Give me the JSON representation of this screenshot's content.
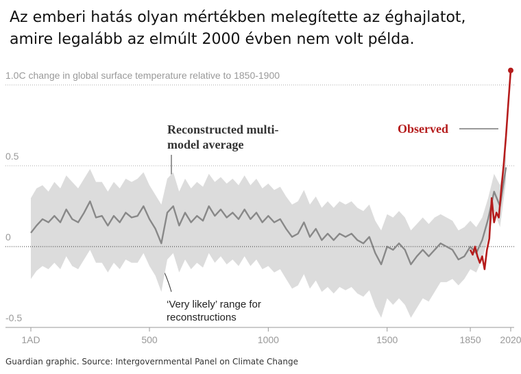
{
  "title": "Az emberi hatás olyan mértékben melegítette az éghajlatot, amire legalább az elmúlt 2000 évben nem volt példa.",
  "source": "Guardian graphic. Source: Intergovernmental Panel on Climate Change",
  "chart_data": {
    "type": "line",
    "xlim": [
      1,
      2020
    ],
    "ylim": [
      -0.5,
      1.1
    ],
    "xticks": [
      {
        "value": 1,
        "label": "1AD"
      },
      500,
      1000,
      1500,
      1850,
      2020
    ],
    "yticks": [
      -0.5,
      0,
      0.5,
      {
        "value": 1,
        "label": "1.0C change in global surface temperature relative to 1850-1900"
      }
    ],
    "grid": true,
    "range": {
      "name": "‘Very likely’ range for reconstructions",
      "color": "#dcdcdc",
      "x": [
        1,
        25,
        50,
        75,
        100,
        125,
        150,
        175,
        200,
        225,
        250,
        275,
        300,
        325,
        350,
        375,
        400,
        425,
        450,
        475,
        500,
        525,
        550,
        575,
        600,
        625,
        650,
        675,
        700,
        725,
        750,
        775,
        800,
        825,
        850,
        875,
        900,
        925,
        950,
        975,
        1000,
        1025,
        1050,
        1075,
        1100,
        1125,
        1150,
        1175,
        1200,
        1225,
        1250,
        1275,
        1300,
        1325,
        1350,
        1375,
        1400,
        1425,
        1450,
        1475,
        1500,
        1525,
        1550,
        1575,
        1600,
        1625,
        1650,
        1675,
        1700,
        1725,
        1750,
        1775,
        1800,
        1825,
        1850,
        1875,
        1900,
        1925,
        1950,
        1975,
        2000
      ],
      "upper": [
        0.3,
        0.36,
        0.38,
        0.34,
        0.4,
        0.36,
        0.44,
        0.4,
        0.36,
        0.42,
        0.48,
        0.4,
        0.4,
        0.34,
        0.4,
        0.36,
        0.42,
        0.4,
        0.42,
        0.46,
        0.38,
        0.32,
        0.26,
        0.42,
        0.46,
        0.34,
        0.42,
        0.36,
        0.4,
        0.37,
        0.45,
        0.4,
        0.43,
        0.39,
        0.42,
        0.38,
        0.44,
        0.38,
        0.42,
        0.36,
        0.39,
        0.35,
        0.37,
        0.31,
        0.26,
        0.28,
        0.35,
        0.26,
        0.31,
        0.24,
        0.28,
        0.24,
        0.28,
        0.26,
        0.28,
        0.24,
        0.22,
        0.26,
        0.16,
        0.1,
        0.2,
        0.18,
        0.22,
        0.18,
        0.1,
        0.14,
        0.18,
        0.14,
        0.18,
        0.2,
        0.18,
        0.16,
        0.1,
        0.12,
        0.16,
        0.12,
        0.18,
        0.3,
        0.45,
        0.38,
        0.58
      ],
      "lower": [
        -0.2,
        -0.15,
        -0.12,
        -0.14,
        -0.1,
        -0.14,
        -0.06,
        -0.12,
        -0.14,
        -0.08,
        -0.02,
        -0.1,
        -0.1,
        -0.16,
        -0.1,
        -0.14,
        -0.08,
        -0.1,
        -0.1,
        -0.04,
        -0.12,
        -0.18,
        -0.28,
        -0.08,
        -0.04,
        -0.16,
        -0.08,
        -0.14,
        -0.1,
        -0.13,
        -0.04,
        -0.1,
        -0.06,
        -0.11,
        -0.08,
        -0.12,
        -0.06,
        -0.12,
        -0.08,
        -0.14,
        -0.12,
        -0.16,
        -0.14,
        -0.2,
        -0.26,
        -0.24,
        -0.17,
        -0.26,
        -0.21,
        -0.28,
        -0.25,
        -0.29,
        -0.25,
        -0.27,
        -0.25,
        -0.29,
        -0.31,
        -0.27,
        -0.37,
        -0.44,
        -0.32,
        -0.36,
        -0.32,
        -0.36,
        -0.44,
        -0.38,
        -0.32,
        -0.34,
        -0.28,
        -0.22,
        -0.22,
        -0.2,
        -0.24,
        -0.2,
        -0.14,
        -0.16,
        -0.08,
        0.05,
        0.22,
        0.12,
        0.4
      ]
    },
    "series": [
      {
        "name": "Reconstructed multi-model average",
        "color": "#888888",
        "x": [
          1,
          25,
          50,
          75,
          100,
          125,
          150,
          175,
          200,
          225,
          250,
          275,
          300,
          325,
          350,
          375,
          400,
          425,
          450,
          475,
          500,
          525,
          550,
          575,
          600,
          625,
          650,
          675,
          700,
          725,
          750,
          775,
          800,
          825,
          850,
          875,
          900,
          925,
          950,
          975,
          1000,
          1025,
          1050,
          1075,
          1100,
          1125,
          1150,
          1175,
          1200,
          1225,
          1250,
          1275,
          1300,
          1325,
          1350,
          1375,
          1400,
          1425,
          1450,
          1475,
          1500,
          1525,
          1550,
          1575,
          1600,
          1625,
          1650,
          1675,
          1700,
          1725,
          1750,
          1775,
          1800,
          1825,
          1850,
          1875,
          1900,
          1925,
          1950,
          1975,
          2000
        ],
        "values": [
          0.085,
          0.13,
          0.17,
          0.15,
          0.19,
          0.15,
          0.23,
          0.17,
          0.15,
          0.21,
          0.28,
          0.18,
          0.19,
          0.13,
          0.19,
          0.15,
          0.21,
          0.18,
          0.19,
          0.25,
          0.17,
          0.11,
          0.02,
          0.21,
          0.25,
          0.13,
          0.21,
          0.15,
          0.19,
          0.16,
          0.25,
          0.19,
          0.23,
          0.18,
          0.21,
          0.17,
          0.23,
          0.17,
          0.21,
          0.15,
          0.19,
          0.15,
          0.17,
          0.11,
          0.06,
          0.08,
          0.15,
          0.06,
          0.11,
          0.04,
          0.08,
          0.04,
          0.08,
          0.06,
          0.08,
          0.04,
          0.02,
          0.06,
          -0.04,
          -0.11,
          0,
          -0.02,
          0.02,
          -0.02,
          -0.11,
          -0.06,
          -0.02,
          -0.06,
          -0.02,
          0.02,
          0,
          -0.02,
          -0.08,
          -0.06,
          0,
          -0.04,
          0.04,
          0.17,
          0.34,
          0.25,
          0.49
        ]
      },
      {
        "name": "Observed",
        "color": "#b51c1c",
        "x": [
          1850,
          1860,
          1870,
          1880,
          1890,
          1900,
          1910,
          1920,
          1930,
          1940,
          1950,
          1960,
          1970,
          1980,
          1990,
          2000,
          2010,
          2020
        ],
        "values": [
          -0.02,
          -0.05,
          0,
          -0.06,
          -0.1,
          -0.06,
          -0.14,
          -0.02,
          0.05,
          0.3,
          0.15,
          0.21,
          0.18,
          0.35,
          0.5,
          0.68,
          0.89,
          1.09
        ]
      }
    ]
  }
}
